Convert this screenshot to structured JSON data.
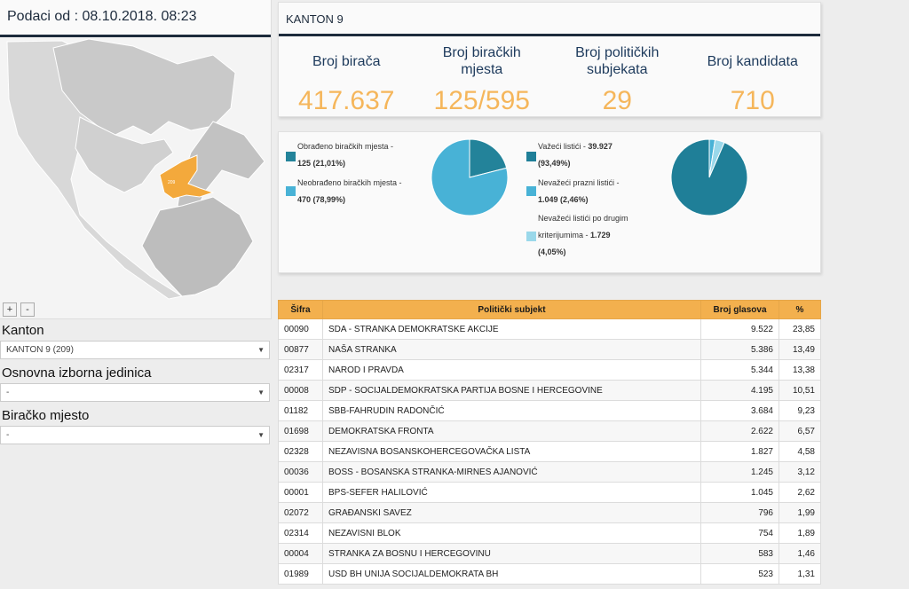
{
  "left": {
    "header": "Podaci od : 08.10.2018. 08:23",
    "map_region_label": "209",
    "zoom_in": "+",
    "zoom_out": "-"
  },
  "filters": [
    {
      "label": "Kanton",
      "value": "KANTON 9 (209)"
    },
    {
      "label": "Osnovna izborna jedinica",
      "value": "-"
    },
    {
      "label": "Biračko mjesto",
      "value": "-"
    }
  ],
  "summary": {
    "title": "KANTON 9",
    "stats": [
      {
        "label": "Broj birača",
        "value": "417.637"
      },
      {
        "label": "Broj biračkih mjesta",
        "value": "125/595"
      },
      {
        "label": "Broj političkih subjekata",
        "value": "29"
      },
      {
        "label": "Broj kandidata",
        "value": "710"
      }
    ]
  },
  "charts": {
    "stations": {
      "processed_label": "Obrađeno biračkih mjesta -",
      "processed_value": "125 (21,01%)",
      "processed_fraction": 0.2101,
      "unprocessed_label": "Neobrađeno biračkih mjesta -",
      "unprocessed_value": "470 (78,99%)",
      "colors": {
        "processed": "#23839a",
        "unprocessed": "#48b2d6"
      }
    },
    "ballots": {
      "valid_label": "Važeći listići -",
      "valid_value": "39.927",
      "valid_pct": "(93,49%)",
      "valid_fraction": 0.9349,
      "blank_label": "Nevažeći prazni listići -",
      "blank_value": "1.049 (2,46%)",
      "blank_fraction": 0.0246,
      "other_label_1": "Nevažeći listići po drugim",
      "other_label_2": "kriterijumima -",
      "other_value": "1.729",
      "other_pct": "(4,05%)",
      "other_fraction": 0.0405,
      "colors": {
        "valid": "#1f7f98",
        "blank": "#48b2d6",
        "other": "#9ad8ea"
      }
    }
  },
  "table": {
    "headers": [
      "Šifra",
      "Politički subjekt",
      "Broj glasova",
      "%"
    ],
    "rows": [
      [
        "00090",
        "SDA - STRANKA DEMOKRATSKE AKCIJE",
        "9.522",
        "23,85"
      ],
      [
        "00877",
        "NAŠA STRANKA",
        "5.386",
        "13,49"
      ],
      [
        "02317",
        "NAROD I PRAVDA",
        "5.344",
        "13,38"
      ],
      [
        "00008",
        "SDP - SOCIJALDEMOKRATSKA PARTIJA BOSNE I HERCEGOVINE",
        "4.195",
        "10,51"
      ],
      [
        "01182",
        "SBB-FAHRUDIN RADONČIĆ",
        "3.684",
        "9,23"
      ],
      [
        "01698",
        "DEMOKRATSKA FRONTA",
        "2.622",
        "6,57"
      ],
      [
        "02328",
        "NEZAVISNA BOSANSKOHERCEGOVAČKA LISTA",
        "1.827",
        "4,58"
      ],
      [
        "00036",
        "BOSS - BOSANSKA STRANKA-MIRNES AJANOVIĆ",
        "1.245",
        "3,12"
      ],
      [
        "00001",
        "BPS-SEFER HALILOVIĆ",
        "1.045",
        "2,62"
      ],
      [
        "02072",
        "GRAĐANSKI SAVEZ",
        "796",
        "1,99"
      ],
      [
        "02314",
        "NEZAVISNI BLOK",
        "754",
        "1,89"
      ],
      [
        "00004",
        "STRANKA ZA BOSNU I HERCEGOVINU",
        "583",
        "1,46"
      ],
      [
        "01989",
        "USD BH UNIJA SOCIJALDEMOKRATA BH",
        "523",
        "1,31"
      ]
    ]
  }
}
